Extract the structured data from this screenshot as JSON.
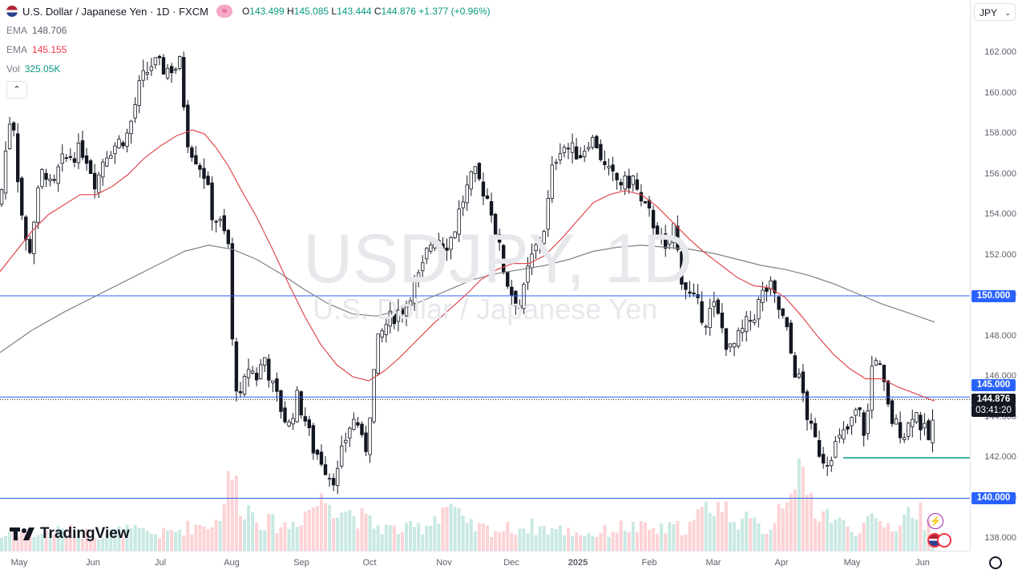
{
  "header": {
    "symbol_title": "U.S. Dollar / Japanese Yen · 1D · FXCM",
    "ohlc": {
      "o_label": "O",
      "o": "143.499",
      "h_label": "H",
      "h": "145.085",
      "l_label": "L",
      "l": "143.444",
      "c_label": "C",
      "c": "144.876",
      "change": "+1.377 (+0.96%)"
    },
    "currency_button": "JPY",
    "collapse_icon": "chevron-up-icon"
  },
  "indicators": [
    {
      "label": "EMA",
      "value": "148.706",
      "color": "#5d606b"
    },
    {
      "label": "EMA",
      "value": "145.155",
      "color": "#f23645"
    },
    {
      "label": "Vol",
      "value": "325.05K",
      "color": "#089981"
    }
  ],
  "watermark": {
    "symbol": "USDJPY, 1D",
    "name": "U.S. Dollar / Japanese Yen"
  },
  "branding": {
    "logo_text": "TradingView"
  },
  "price_axis": {
    "ticks": [
      "162.000",
      "160.000",
      "158.000",
      "156.000",
      "154.000",
      "152.000",
      "150.000",
      "148.000",
      "146.000",
      "144.000",
      "142.000",
      "140.000",
      "138.000"
    ],
    "badges": {
      "line_150": "150.000",
      "line_145": "145.000",
      "last_price": "144.876",
      "countdown": "03:41:20",
      "line_140": "140.000"
    }
  },
  "time_axis": {
    "ticks": [
      "May",
      "Jun",
      "Jul",
      "Aug",
      "Sep",
      "Oct",
      "Nov",
      "Dec",
      "2025",
      "Feb",
      "Mar",
      "Apr",
      "May",
      "Jun"
    ]
  },
  "colors": {
    "up": "#089981",
    "down": "#f23645",
    "ema_fast": "#e0484f",
    "ema_slow": "#7f8188",
    "hline": "#2962ff",
    "support": "#089981"
  },
  "chart_data": {
    "type": "candlestick",
    "title": "U.S. Dollar / Japanese Yen · 1D · FXCM",
    "ylim": [
      137.4,
      162.8
    ],
    "x_labels": [
      "May",
      "Jun",
      "Jul",
      "Aug",
      "Sep",
      "Oct",
      "Nov",
      "Dec",
      "2025",
      "Feb",
      "Mar",
      "Apr",
      "May",
      "Jun"
    ],
    "close_path": [
      [
        0,
        154.5
      ],
      [
        8,
        157.5
      ],
      [
        15,
        159.5
      ],
      [
        22,
        156.0
      ],
      [
        30,
        153.0
      ],
      [
        36,
        152.0
      ],
      [
        45,
        154.5
      ],
      [
        55,
        156.5
      ],
      [
        65,
        155.0
      ],
      [
        75,
        156.5
      ],
      [
        90,
        157.0
      ],
      [
        105,
        157.2
      ],
      [
        120,
        155.5
      ],
      [
        130,
        157.0
      ],
      [
        145,
        157.5
      ],
      [
        160,
        158.0
      ],
      [
        175,
        160.5
      ],
      [
        190,
        161.5
      ],
      [
        205,
        161.2
      ],
      [
        220,
        161.3
      ],
      [
        225,
        161.5
      ],
      [
        228,
        160.0
      ],
      [
        235,
        157.5
      ],
      [
        245,
        156.8
      ],
      [
        255,
        156.0
      ],
      [
        265,
        154.0
      ],
      [
        275,
        153.5
      ],
      [
        285,
        152.5
      ],
      [
        290,
        147.5
      ],
      [
        298,
        144.5
      ],
      [
        310,
        146.5
      ],
      [
        320,
        146.0
      ],
      [
        330,
        147.0
      ],
      [
        340,
        145.5
      ],
      [
        350,
        144.5
      ],
      [
        360,
        143.5
      ],
      [
        370,
        145.0
      ],
      [
        380,
        144.0
      ],
      [
        390,
        142.5
      ],
      [
        400,
        142.0
      ],
      [
        410,
        141.2
      ],
      [
        420,
        141.0
      ],
      [
        428,
        142.5
      ],
      [
        435,
        143.5
      ],
      [
        445,
        144.0
      ],
      [
        455,
        142.0
      ],
      [
        462,
        144.5
      ],
      [
        470,
        147.5
      ],
      [
        480,
        148.5
      ],
      [
        490,
        149.0
      ],
      [
        505,
        149.5
      ],
      [
        515,
        150.5
      ],
      [
        525,
        151.0
      ],
      [
        535,
        152.5
      ],
      [
        545,
        153.0
      ],
      [
        555,
        152.5
      ],
      [
        565,
        153.0
      ],
      [
        575,
        154.5
      ],
      [
        585,
        155.5
      ],
      [
        592,
        156.0
      ],
      [
        600,
        155.5
      ],
      [
        612,
        154.5
      ],
      [
        622,
        152.5
      ],
      [
        630,
        151.0
      ],
      [
        640,
        150.0
      ],
      [
        650,
        149.5
      ],
      [
        660,
        151.5
      ],
      [
        670,
        152.5
      ],
      [
        680,
        153.5
      ],
      [
        690,
        156.5
      ],
      [
        700,
        157.5
      ],
      [
        712,
        157.2
      ],
      [
        725,
        157.0
      ],
      [
        735,
        157.8
      ],
      [
        745,
        157.5
      ],
      [
        755,
        156.2
      ],
      [
        765,
        155.8
      ],
      [
        780,
        155.5
      ],
      [
        790,
        155.8
      ],
      [
        800,
        154.5
      ],
      [
        810,
        154.0
      ],
      [
        820,
        153.2
      ],
      [
        830,
        152.0
      ],
      [
        840,
        153.5
      ],
      [
        850,
        151.0
      ],
      [
        860,
        150.0
      ],
      [
        870,
        149.5
      ],
      [
        880,
        148.8
      ],
      [
        890,
        149.5
      ],
      [
        900,
        148.5
      ],
      [
        910,
        147.2
      ],
      [
        920,
        147.8
      ],
      [
        930,
        148.5
      ],
      [
        940,
        149.0
      ],
      [
        950,
        150.0
      ],
      [
        960,
        150.5
      ],
      [
        970,
        149.5
      ],
      [
        980,
        148.5
      ],
      [
        990,
        146.5
      ],
      [
        1000,
        145.5
      ],
      [
        1010,
        143.5
      ],
      [
        1020,
        142.5
      ],
      [
        1030,
        141.8
      ],
      [
        1040,
        142.5
      ],
      [
        1050,
        143.0
      ],
      [
        1060,
        143.5
      ],
      [
        1070,
        144.5
      ],
      [
        1080,
        143.0
      ],
      [
        1090,
        147.5
      ],
      [
        1100,
        146.0
      ],
      [
        1110,
        144.0
      ],
      [
        1120,
        143.5
      ],
      [
        1130,
        143.2
      ],
      [
        1140,
        144.5
      ],
      [
        1150,
        143.5
      ],
      [
        1160,
        142.8
      ],
      [
        1168,
        144.876
      ]
    ],
    "ema_fast_path": [
      [
        0,
        151.2
      ],
      [
        20,
        152.2
      ],
      [
        40,
        153.2
      ],
      [
        60,
        154.0
      ],
      [
        80,
        154.5
      ],
      [
        100,
        155.0
      ],
      [
        120,
        155.0
      ],
      [
        140,
        155.4
      ],
      [
        160,
        156.0
      ],
      [
        180,
        156.8
      ],
      [
        200,
        157.4
      ],
      [
        220,
        157.9
      ],
      [
        240,
        158.2
      ],
      [
        255,
        158.0
      ],
      [
        270,
        157.3
      ],
      [
        285,
        156.4
      ],
      [
        300,
        155.3
      ],
      [
        320,
        153.9
      ],
      [
        340,
        152.3
      ],
      [
        360,
        150.6
      ],
      [
        380,
        149.0
      ],
      [
        400,
        147.6
      ],
      [
        420,
        146.6
      ],
      [
        440,
        146.0
      ],
      [
        460,
        145.8
      ],
      [
        480,
        146.3
      ],
      [
        500,
        147.0
      ],
      [
        520,
        147.8
      ],
      [
        540,
        148.6
      ],
      [
        560,
        149.3
      ],
      [
        580,
        150.0
      ],
      [
        600,
        150.8
      ],
      [
        620,
        151.3
      ],
      [
        640,
        151.6
      ],
      [
        660,
        151.6
      ],
      [
        680,
        152.0
      ],
      [
        700,
        152.8
      ],
      [
        720,
        153.7
      ],
      [
        740,
        154.6
      ],
      [
        760,
        155.0
      ],
      [
        780,
        155.2
      ],
      [
        800,
        155.0
      ],
      [
        820,
        154.4
      ],
      [
        840,
        153.6
      ],
      [
        860,
        152.8
      ],
      [
        880,
        152.1
      ],
      [
        900,
        151.5
      ],
      [
        920,
        150.9
      ],
      [
        940,
        150.5
      ],
      [
        960,
        150.4
      ],
      [
        980,
        149.9
      ],
      [
        1000,
        149.0
      ],
      [
        1020,
        148.0
      ],
      [
        1040,
        147.1
      ],
      [
        1060,
        146.4
      ],
      [
        1080,
        145.9
      ],
      [
        1100,
        145.9
      ],
      [
        1120,
        145.5
      ],
      [
        1140,
        145.2
      ],
      [
        1166,
        144.8
      ]
    ],
    "ema_slow_path": [
      [
        0,
        147.2
      ],
      [
        40,
        148.3
      ],
      [
        80,
        149.2
      ],
      [
        120,
        150.0
      ],
      [
        160,
        150.8
      ],
      [
        200,
        151.6
      ],
      [
        230,
        152.2
      ],
      [
        260,
        152.5
      ],
      [
        290,
        152.3
      ],
      [
        320,
        151.8
      ],
      [
        350,
        151.1
      ],
      [
        380,
        150.3
      ],
      [
        410,
        149.6
      ],
      [
        440,
        149.1
      ],
      [
        470,
        149.0
      ],
      [
        500,
        149.3
      ],
      [
        530,
        149.8
      ],
      [
        560,
        150.3
      ],
      [
        590,
        150.8
      ],
      [
        620,
        151.1
      ],
      [
        650,
        151.3
      ],
      [
        680,
        151.5
      ],
      [
        710,
        151.8
      ],
      [
        740,
        152.2
      ],
      [
        770,
        152.4
      ],
      [
        800,
        152.5
      ],
      [
        830,
        152.4
      ],
      [
        860,
        152.3
      ],
      [
        890,
        152.1
      ],
      [
        920,
        151.8
      ],
      [
        950,
        151.5
      ],
      [
        980,
        151.3
      ],
      [
        1010,
        151.0
      ],
      [
        1040,
        150.6
      ],
      [
        1070,
        150.1
      ],
      [
        1100,
        149.6
      ],
      [
        1130,
        149.2
      ],
      [
        1166,
        148.7
      ]
    ],
    "horizontal_lines": [
      150.0,
      145.0,
      140.0
    ],
    "support_line": {
      "value": 142.0,
      "from_x": 1052
    },
    "volume_peaks": [
      [
        0,
        0.15
      ],
      [
        15,
        0.25
      ],
      [
        40,
        0.2
      ],
      [
        80,
        0.25
      ],
      [
        120,
        0.2
      ],
      [
        160,
        0.25
      ],
      [
        200,
        0.2
      ],
      [
        240,
        0.3
      ],
      [
        270,
        0.35
      ],
      [
        290,
        0.95
      ],
      [
        300,
        0.6
      ],
      [
        330,
        0.35
      ],
      [
        360,
        0.3
      ],
      [
        390,
        0.55
      ],
      [
        410,
        0.65
      ],
      [
        440,
        0.45
      ],
      [
        470,
        0.3
      ],
      [
        500,
        0.25
      ],
      [
        530,
        0.3
      ],
      [
        560,
        0.6
      ],
      [
        580,
        0.3
      ],
      [
        620,
        0.25
      ],
      [
        660,
        0.3
      ],
      [
        700,
        0.25
      ],
      [
        740,
        0.2
      ],
      [
        780,
        0.3
      ],
      [
        820,
        0.25
      ],
      [
        860,
        0.3
      ],
      [
        890,
        0.6
      ],
      [
        920,
        0.4
      ],
      [
        960,
        0.25
      ],
      [
        990,
        1.0
      ],
      [
        1000,
        0.8
      ],
      [
        1020,
        0.5
      ],
      [
        1035,
        0.45
      ],
      [
        1060,
        0.25
      ],
      [
        1090,
        0.35
      ],
      [
        1120,
        0.3
      ],
      [
        1140,
        0.55
      ],
      [
        1160,
        0.3
      ]
    ]
  }
}
